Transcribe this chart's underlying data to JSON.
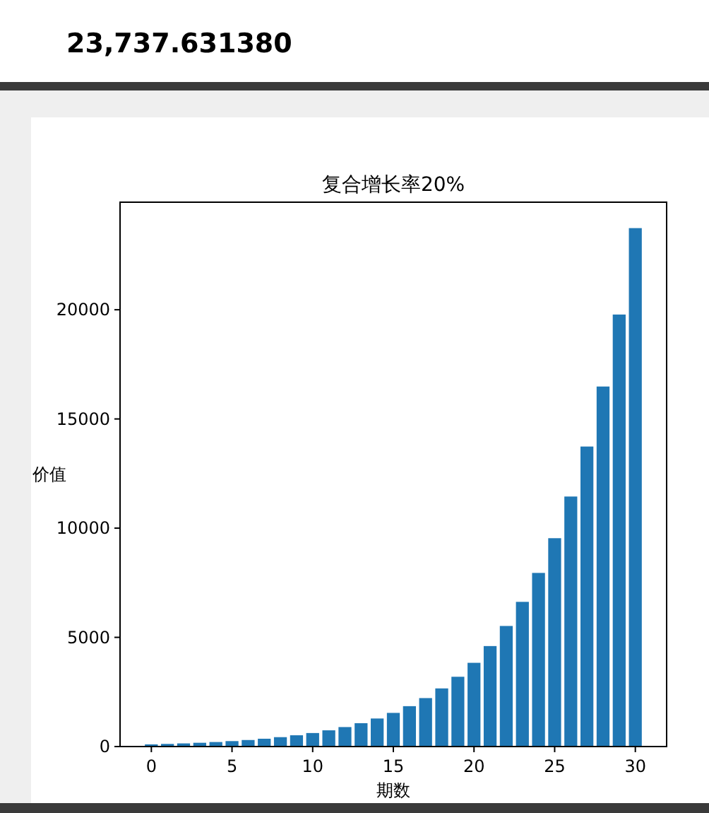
{
  "chart_data": {
    "type": "bar",
    "title": "复合增长率20%",
    "xlabel": "期数",
    "ylabel": "价值",
    "color": "#1f77b4",
    "annotations": [
      "23,737.631380"
    ],
    "x": [
      0,
      1,
      2,
      3,
      4,
      5,
      6,
      7,
      8,
      9,
      10,
      11,
      12,
      13,
      14,
      15,
      16,
      17,
      18,
      19,
      20,
      21,
      22,
      23,
      24,
      25,
      26,
      27,
      28,
      29,
      30
    ],
    "values": [
      100,
      120,
      144,
      173,
      207,
      249,
      299,
      358,
      430,
      516,
      619,
      743,
      892,
      1070,
      1284,
      1541,
      1849,
      2219,
      2662,
      3195,
      3834,
      4601,
      5521,
      6625,
      7950,
      9540,
      11448,
      13737,
      16485,
      19781,
      23738
    ],
    "xlim": [
      -1.94,
      31.94
    ],
    "xticks": [
      0,
      5,
      10,
      15,
      20,
      25,
      30
    ],
    "ylim": [
      0,
      24925
    ],
    "yticks": [
      0,
      5000,
      10000,
      15000,
      20000
    ],
    "grid": false
  }
}
